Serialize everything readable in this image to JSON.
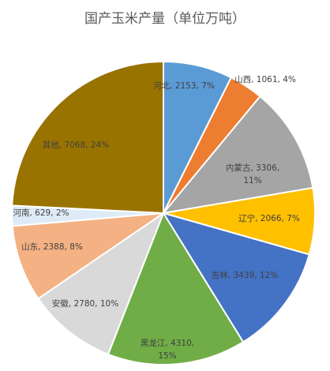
{
  "chart_data": {
    "type": "pie",
    "title": "国产玉米产量（单位万吨）",
    "slices": [
      {
        "name": "河北",
        "value": 2153,
        "percent": "7%",
        "label": "河北, 2153, 7%",
        "color": "#5B9BD5"
      },
      {
        "name": "山西",
        "value": 1061,
        "percent": "4%",
        "label": "山西, 1061, 4%",
        "color": "#ED7D31"
      },
      {
        "name": "内蒙古",
        "value": 3306,
        "percent": "11%",
        "label": "内蒙古, 3306, 11%",
        "color": "#A5A5A5"
      },
      {
        "name": "辽宁",
        "value": 2066,
        "percent": "7%",
        "label": "辽宁, 2066, 7%",
        "color": "#FFC000"
      },
      {
        "name": "吉林",
        "value": 3439,
        "percent": "12%",
        "label": "吉林, 3439, 12%",
        "color": "#4472C4"
      },
      {
        "name": "黑龙江",
        "value": 4310,
        "percent": "15%",
        "label": "黑龙江, 4310, 15%",
        "color": "#70AD47"
      },
      {
        "name": "安徽",
        "value": 2780,
        "percent": "10%",
        "label": "安徽, 2780, 10%",
        "color": "#D9D9D9"
      },
      {
        "name": "山东",
        "value": 2388,
        "percent": "8%",
        "label": "山东, 2388, 8%",
        "color": "#F4B183"
      },
      {
        "name": "河南",
        "value": 629,
        "percent": "2%",
        "label": "河南, 629, 2%",
        "color": "#DEEBF7"
      },
      {
        "name": "其他",
        "value": 7068,
        "percent": "24%",
        "label": "其他, 7068, 24%",
        "color": "#997300"
      }
    ]
  }
}
